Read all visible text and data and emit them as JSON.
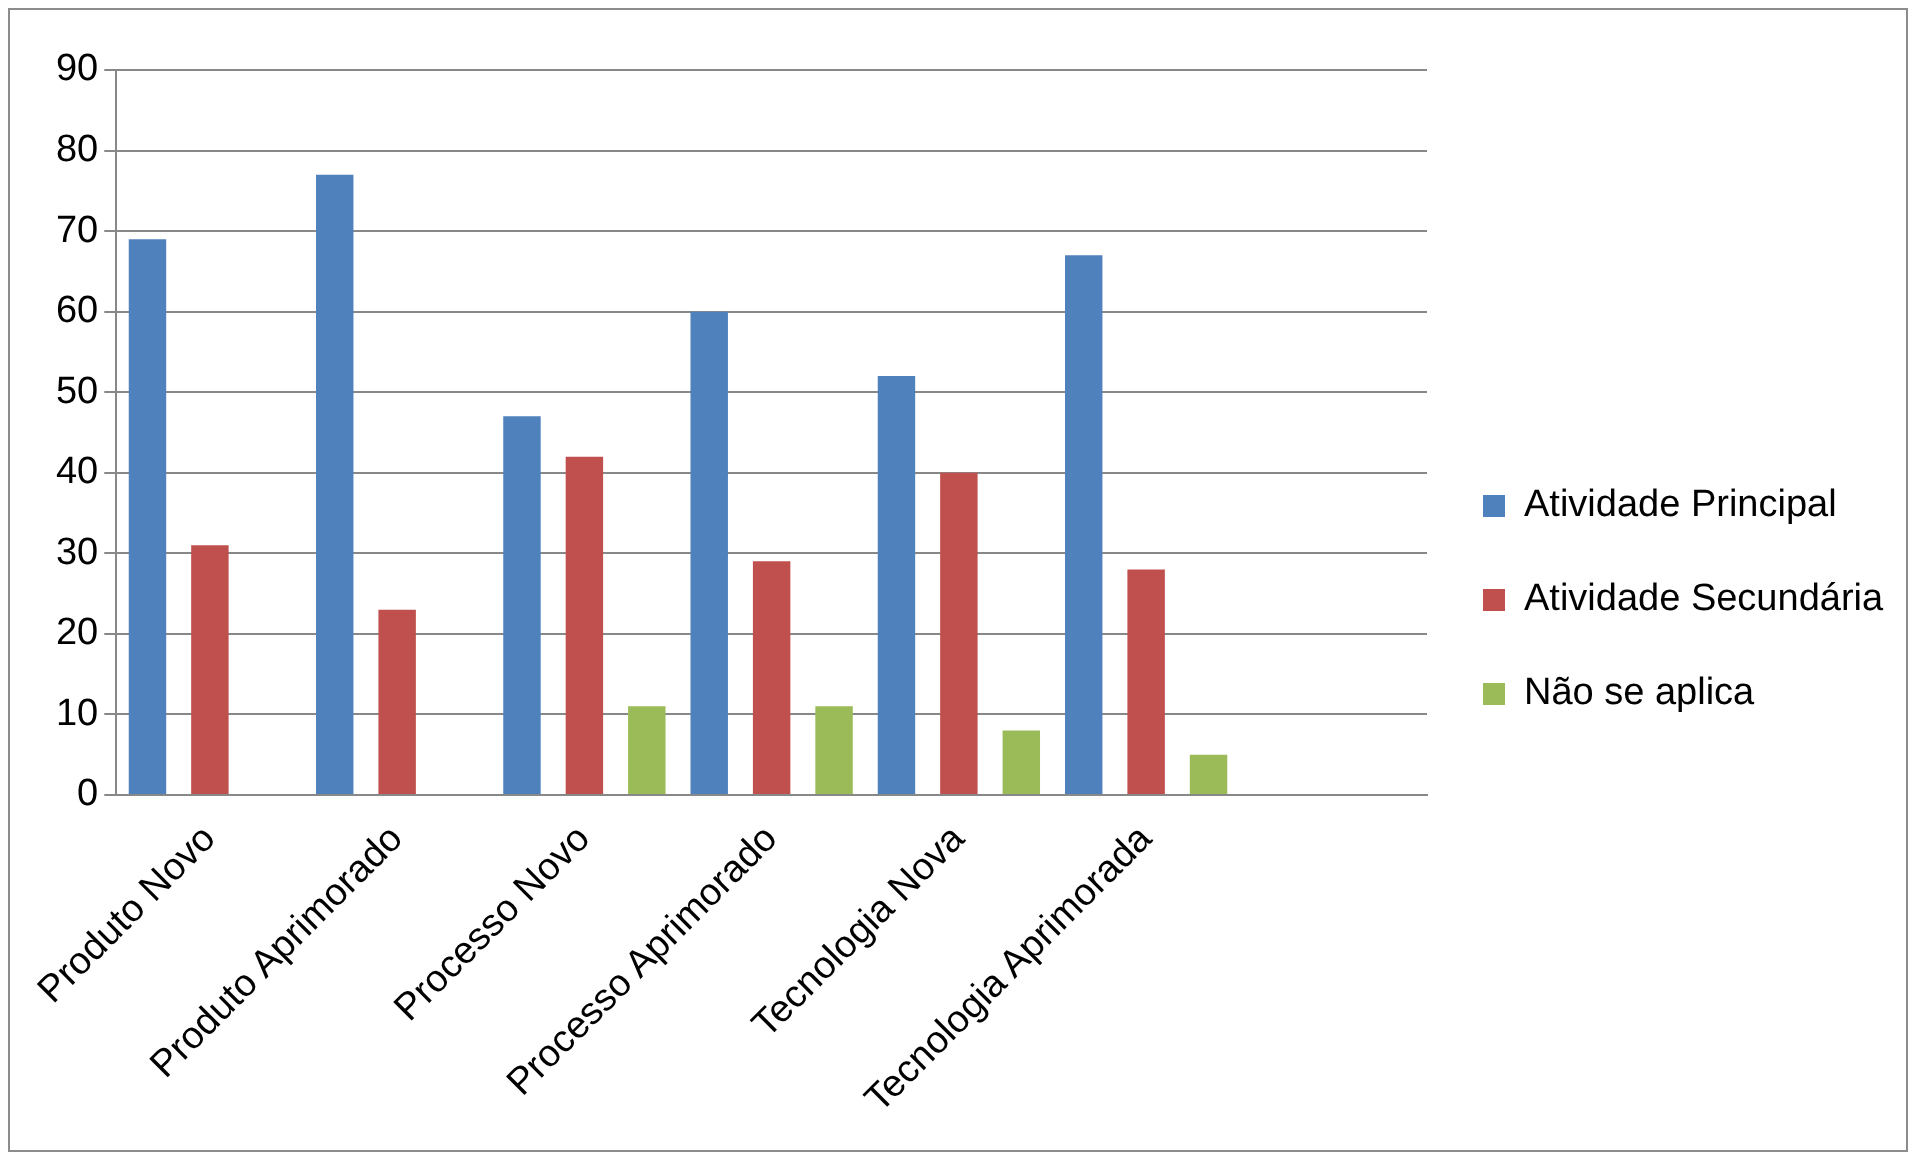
{
  "chart_data": {
    "type": "bar",
    "categories": [
      "Produto Novo",
      "Produto Aprimorado",
      "Processo Novo",
      "Processo Aprimorado",
      "Tecnologia Nova",
      "Tecnologia Aprimorada",
      null
    ],
    "series": [
      {
        "name": "Atividade Principal",
        "color": "#4f81bd",
        "values": [
          69,
          77,
          47,
          60,
          52,
          67,
          null
        ]
      },
      {
        "name": "Atividade Secundária",
        "color": "#c0504d",
        "values": [
          31,
          23,
          42,
          29,
          40,
          28,
          null
        ]
      },
      {
        "name": "Não se aplica",
        "color": "#9bbb59",
        "values": [
          0,
          0,
          11,
          11,
          8,
          5,
          null
        ]
      }
    ],
    "ylim": [
      0,
      90
    ],
    "yticks": [
      0,
      10,
      20,
      30,
      40,
      50,
      60,
      70,
      80,
      90
    ],
    "grid": "y",
    "legend": "right"
  }
}
